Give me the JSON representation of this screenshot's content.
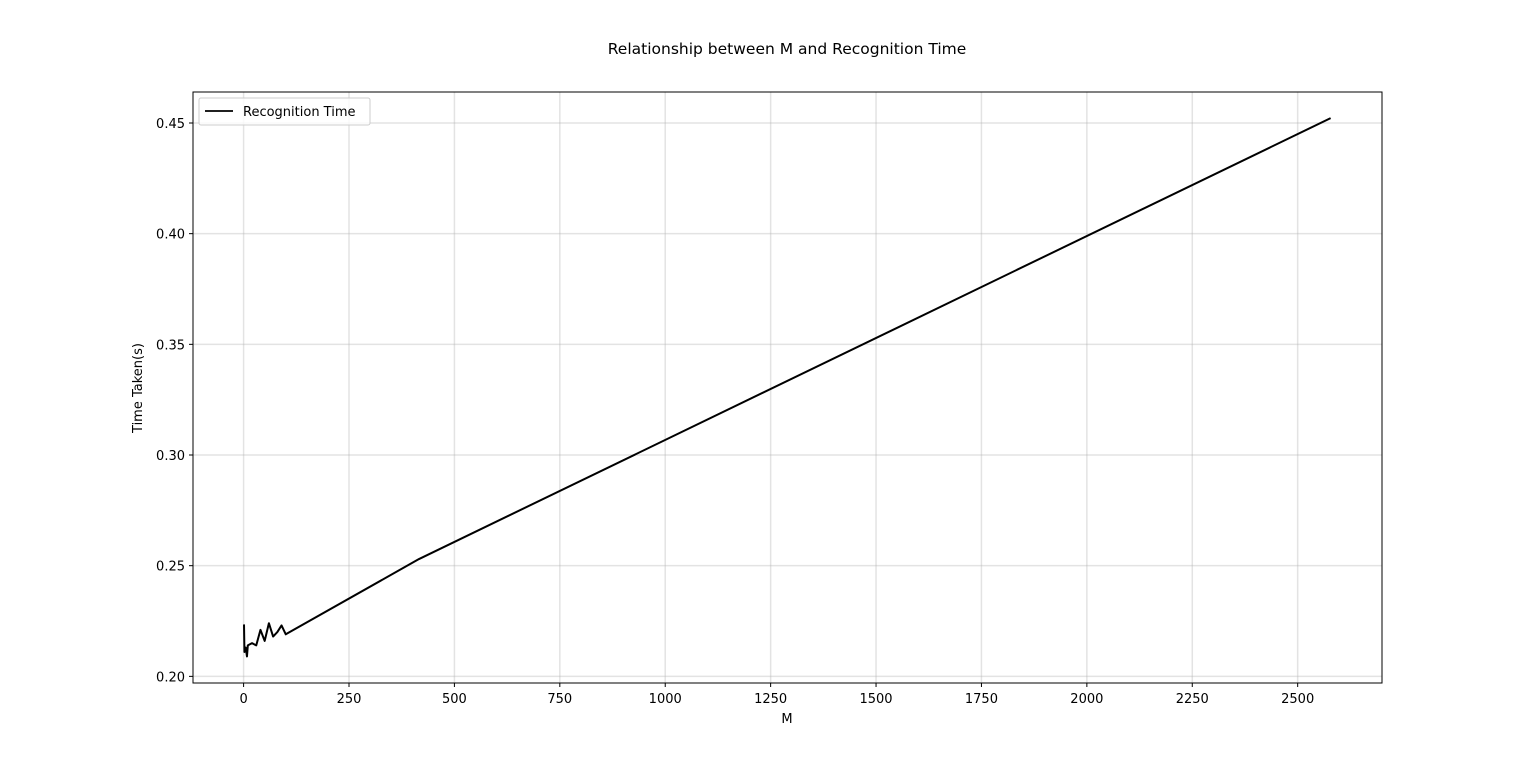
{
  "chart_data": {
    "type": "line",
    "title": "Relationship between M and Recognition Time",
    "xlabel": "M",
    "ylabel": "Time Taken(s)",
    "xlim": [
      -120,
      2700
    ],
    "ylim": [
      0.197,
      0.464
    ],
    "x_ticks": [
      0,
      250,
      500,
      750,
      1000,
      1250,
      1500,
      1750,
      2000,
      2250,
      2500
    ],
    "x_tick_labels": [
      "0",
      "250",
      "500",
      "750",
      "1000",
      "1250",
      "1500",
      "1750",
      "2000",
      "2250",
      "2500"
    ],
    "y_ticks": [
      0.2,
      0.25,
      0.3,
      0.35,
      0.4,
      0.45
    ],
    "y_tick_labels": [
      "0.20",
      "0.25",
      "0.30",
      "0.35",
      "0.40",
      "0.45"
    ],
    "grid": true,
    "legend_position": "top-left",
    "series": [
      {
        "name": "Recognition Time",
        "color": "#000000",
        "x": [
          1,
          2,
          5,
          8,
          10,
          20,
          30,
          40,
          50,
          60,
          70,
          80,
          90,
          100,
          416,
          2576
        ],
        "y": [
          0.223,
          0.211,
          0.213,
          0.209,
          0.214,
          0.215,
          0.214,
          0.221,
          0.216,
          0.224,
          0.218,
          0.22,
          0.223,
          0.219,
          0.253,
          0.452
        ]
      }
    ]
  }
}
